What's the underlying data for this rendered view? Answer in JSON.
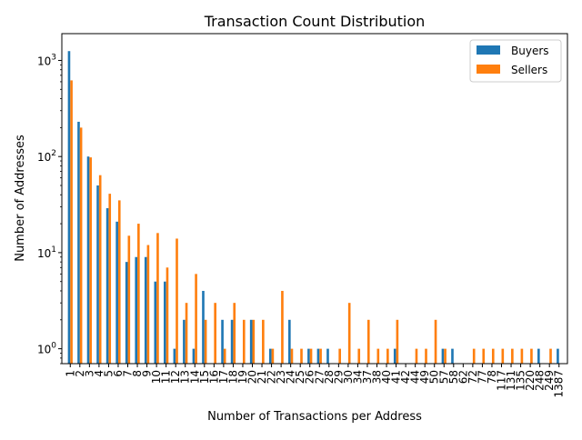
{
  "chart_data": {
    "type": "bar",
    "title": "Transaction Count Distribution",
    "xlabel": "Number of Transactions per Address",
    "ylabel": "Number of Addresses",
    "yscale": "log",
    "ylim": [
      0.7,
      1900
    ],
    "yticks": [
      {
        "value": 1,
        "base": "10",
        "exp": "0"
      },
      {
        "value": 10,
        "base": "10",
        "exp": "1"
      },
      {
        "value": 100,
        "base": "10",
        "exp": "2"
      },
      {
        "value": 1000,
        "base": "10",
        "exp": "3"
      }
    ],
    "grid": false,
    "legend_position": "top-right",
    "categories": [
      "1",
      "2",
      "3",
      "4",
      "5",
      "6",
      "7",
      "8",
      "9",
      "10",
      "11",
      "12",
      "13",
      "14",
      "15",
      "16",
      "17",
      "18",
      "19",
      "20",
      "21",
      "22",
      "23",
      "24",
      "25",
      "26",
      "27",
      "28",
      "29",
      "30",
      "34",
      "37",
      "38",
      "40",
      "41",
      "42",
      "44",
      "49",
      "50",
      "57",
      "58",
      "62",
      "72",
      "77",
      "78",
      "117",
      "131",
      "135",
      "220",
      "248",
      "249",
      "1387"
    ],
    "series": [
      {
        "name": "Buyers",
        "color": "#1f77b4",
        "values": [
          1250,
          230,
          100,
          50,
          29,
          21,
          8,
          9,
          9,
          5,
          5,
          1,
          2,
          1,
          4,
          null,
          2,
          2,
          null,
          2,
          null,
          1,
          null,
          2,
          null,
          1,
          1,
          1,
          null,
          null,
          null,
          null,
          null,
          null,
          1,
          null,
          null,
          null,
          null,
          1,
          1,
          null,
          null,
          null,
          null,
          null,
          null,
          null,
          null,
          1,
          null,
          1
        ]
      },
      {
        "name": "Sellers",
        "color": "#ff7f0e",
        "values": [
          620,
          200,
          98,
          64,
          41,
          35,
          15,
          20,
          12,
          16,
          7,
          14,
          3,
          6,
          2,
          3,
          1,
          3,
          2,
          2,
          2,
          1,
          4,
          1,
          1,
          1,
          1,
          null,
          1,
          3,
          1,
          2,
          1,
          1,
          2,
          null,
          1,
          1,
          2,
          1,
          null,
          null,
          1,
          1,
          1,
          1,
          1,
          1,
          1,
          null,
          1,
          null
        ]
      }
    ]
  }
}
